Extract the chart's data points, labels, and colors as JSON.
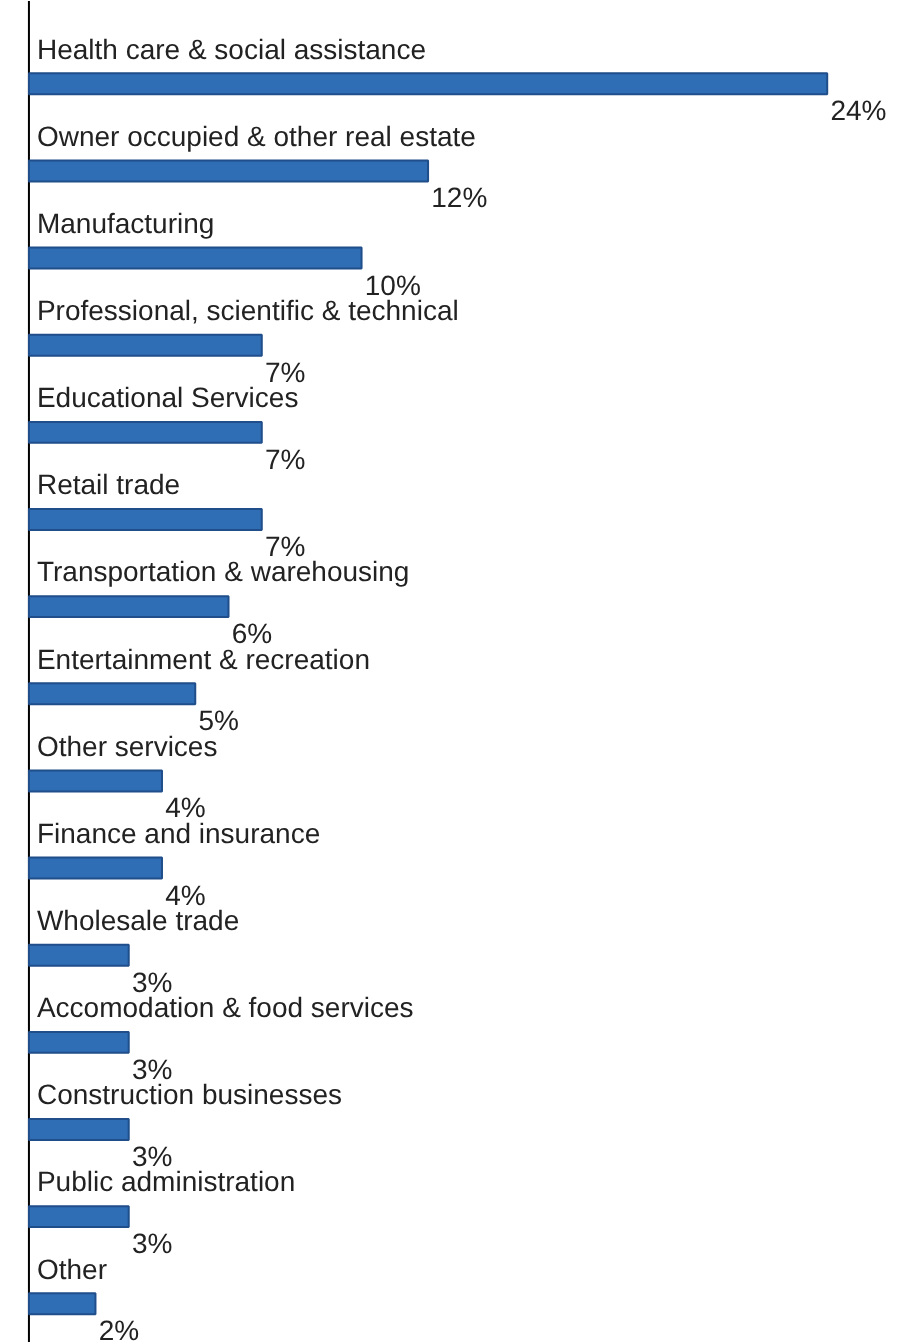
{
  "chart_data": {
    "type": "bar",
    "orientation": "horizontal",
    "color": "#2f6db5",
    "categories": [
      "Health care & social assistance",
      "Owner occupied & other real estate",
      "Manufacturing",
      "Professional, scientific & technical",
      "Educational Services",
      "Retail trade",
      "Transportation & warehousing",
      "Entertainment & recreation",
      "Other services",
      "Finance and insurance",
      "Wholesale trade",
      "Accomodation & food services",
      "Construction businesses",
      "Public administration",
      "Other"
    ],
    "values": [
      24,
      12,
      10,
      7,
      7,
      7,
      6,
      5,
      4,
      4,
      3,
      3,
      3,
      3,
      2
    ],
    "value_labels": [
      "24%",
      "12%",
      "10%",
      "7%",
      "7%",
      "7%",
      "6%",
      "5%",
      "4%",
      "4%",
      "3%",
      "3%",
      "3%",
      "3%",
      "2%"
    ],
    "grid": false
  }
}
